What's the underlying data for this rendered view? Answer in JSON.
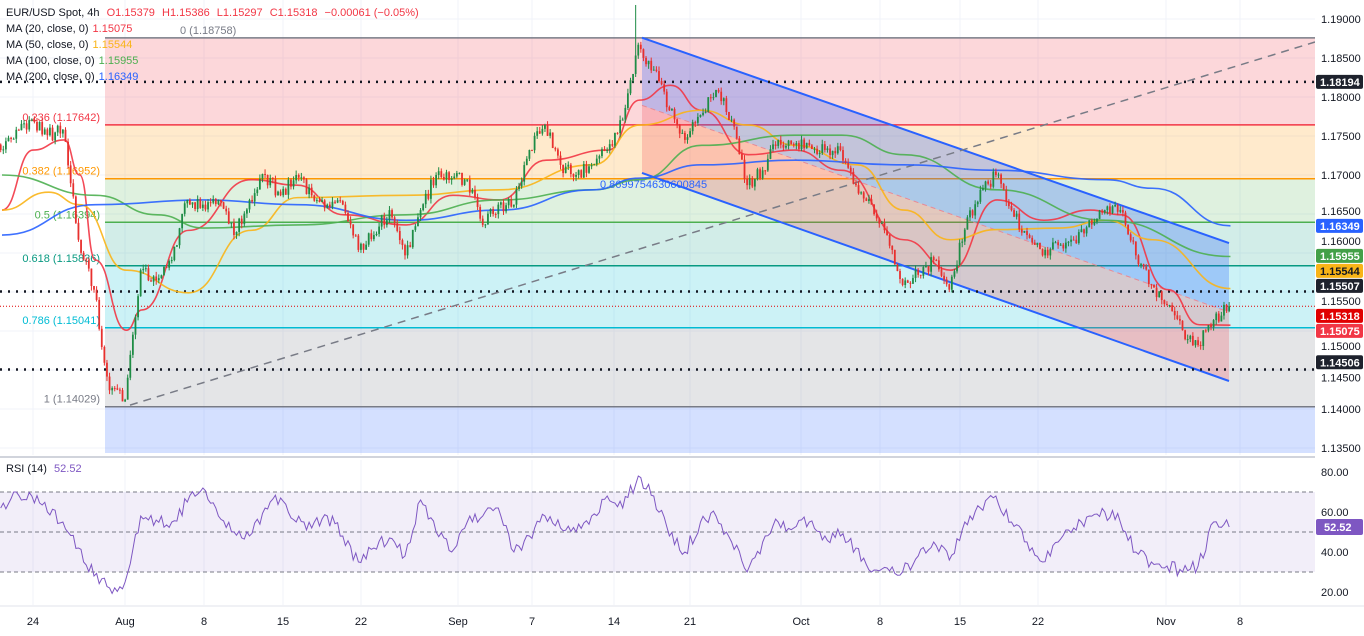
{
  "header": {
    "symbol": "EUR/USD Spot, 4h",
    "open": "O1.15379",
    "high": "H1.15386",
    "low": "L1.15297",
    "close": "C1.15318",
    "change": "−0.00061 (−0.05%)",
    "ohlc_color": "#f23645"
  },
  "indicators": [
    {
      "label": "MA (20, close, 0)",
      "value": "1.15075",
      "color": "#f23645"
    },
    {
      "label": "MA (50, close, 0)",
      "value": "1.15544",
      "color": "#f9b417"
    },
    {
      "label": "MA (100, close, 0)",
      "value": "1.15955",
      "color": "#4caf50"
    },
    {
      "label": "MA (200, close, 0)",
      "value": "1.16349",
      "color": "#2962ff"
    }
  ],
  "rsi_legend": {
    "label": "RSI (14)",
    "value": "52.52",
    "color": "#7e57c2"
  },
  "chart_data": [
    {
      "type": "candlestick",
      "timeframe": "4h",
      "price_axis": {
        "ylim": [
          1.135,
          1.19
        ],
        "ticks": [
          "1.19000",
          "1.18500",
          "1.18000",
          "1.17500",
          "1.17000",
          "1.16500",
          "1.16000",
          "1.15500",
          "1.15000",
          "1.14500",
          "1.14000",
          "1.13500"
        ]
      },
      "x_ticks": [
        "24",
        "Aug",
        "8",
        "15",
        "22",
        "Sep",
        "7",
        "14",
        "21",
        "Oct",
        "8",
        "15",
        "22",
        "Nov",
        "8"
      ],
      "colors": {
        "up": "#1e8c45",
        "down": "#e8302e"
      },
      "closes": [
        1.1732,
        1.1758,
        1.1771,
        1.1751,
        1.1758,
        1.1617,
        1.1553,
        1.1424,
        1.1412,
        1.1578,
        1.1565,
        1.1591,
        1.1668,
        1.1662,
        1.1668,
        1.1623,
        1.1668,
        1.17,
        1.1674,
        1.17,
        1.1674,
        1.1662,
        1.1662,
        1.1604,
        1.1623,
        1.1655,
        1.1597,
        1.1655,
        1.17,
        1.1696,
        1.1694,
        1.1636,
        1.1662,
        1.1662,
        1.1732,
        1.1764,
        1.1713,
        1.17,
        1.1713,
        1.1732,
        1.1771,
        1.1867,
        1.1835,
        1.1783,
        1.1745,
        1.1777,
        1.1809,
        1.1771,
        1.1687,
        1.1706,
        1.1745,
        1.1738,
        1.1738,
        1.1732,
        1.1732,
        1.1687,
        1.1662,
        1.1623,
        1.1559,
        1.1572,
        1.1591,
        1.1553,
        1.163,
        1.1681,
        1.17,
        1.1655,
        1.1623,
        1.1597,
        1.161,
        1.1617,
        1.1642,
        1.1655,
        1.1655,
        1.1597,
        1.1559,
        1.1533,
        1.1501,
        1.1482,
        1.1514,
        1.15318
      ],
      "notable_wick_high": 1.1918,
      "moving_averages": [
        {
          "name": "MA 20",
          "color": "#f23645",
          "values": [
            1.1655,
            null,
            1.1732,
            null,
            1.1745,
            1.17,
            1.1591,
            null,
            1.1501,
            1.1527,
            null,
            null,
            1.1629,
            null,
            null,
            null,
            1.1694,
            null,
            null,
            1.1687,
            null,
            null,
            1.1649,
            null,
            null,
            null,
            1.1636,
            null,
            null,
            1.1674,
            null,
            null,
            1.1668,
            null,
            null,
            1.1719,
            null,
            null,
            null,
            1.1732,
            null,
            1.1796,
            null,
            1.1815,
            null,
            1.1783,
            null,
            null,
            1.1726,
            null,
            null,
            1.1732,
            null,
            null,
            1.1706,
            null,
            null,
            null,
            1.1617,
            null,
            null,
            1.1578,
            null,
            null,
            1.1668,
            null,
            null,
            1.1642,
            null,
            null,
            1.1655,
            null,
            1.1649,
            null,
            null,
            1.1553,
            null,
            1.1508,
            null,
            1.15075
          ]
        },
        {
          "name": "MA 50",
          "color": "#f9b417",
          "values": [
            1.1655,
            null,
            null,
            1.1678,
            null,
            1.1662,
            null,
            null,
            1.1578,
            null,
            null,
            null,
            1.1549,
            null,
            null,
            null,
            1.1629,
            null,
            null,
            1.1671,
            null,
            null,
            null,
            null,
            null,
            null,
            1.1674,
            null,
            null,
            null,
            null,
            null,
            1.1681,
            null,
            null,
            null,
            null,
            null,
            1.1713,
            null,
            null,
            1.1764,
            null,
            null,
            null,
            1.1783,
            null,
            null,
            1.1764,
            null,
            null,
            1.1738,
            null,
            null,
            null,
            1.1713,
            null,
            null,
            1.1655,
            null,
            null,
            1.1617,
            null,
            null,
            1.163,
            null,
            null,
            null,
            1.1632,
            null,
            null,
            1.1642,
            null,
            null,
            1.1617,
            null,
            null,
            null,
            null,
            1.15544
          ]
        },
        {
          "name": "MA 100",
          "color": "#4caf50",
          "values": [
            1.17,
            null,
            null,
            null,
            null,
            null,
            1.1674,
            null,
            null,
            null,
            1.1649,
            null,
            null,
            1.1632,
            null,
            null,
            null,
            null,
            null,
            1.1636,
            null,
            null,
            null,
            null,
            null,
            null,
            1.1649,
            null,
            null,
            null,
            null,
            null,
            1.1668,
            null,
            null,
            null,
            null,
            null,
            1.1681,
            null,
            null,
            1.1694,
            null,
            null,
            null,
            1.1738,
            null,
            null,
            null,
            null,
            null,
            1.1751,
            null,
            null,
            1.1751,
            null,
            null,
            null,
            1.1726,
            null,
            null,
            null,
            null,
            null,
            1.1681,
            null,
            null,
            null,
            null,
            null,
            null,
            1.1642,
            null,
            null,
            null,
            null,
            null,
            null,
            null,
            1.15955
          ]
        },
        {
          "name": "MA 200",
          "color": "#2962ff",
          "values": [
            1.1623,
            null,
            null,
            null,
            null,
            null,
            1.1662,
            null,
            null,
            null,
            null,
            null,
            null,
            1.1668,
            null,
            null,
            null,
            null,
            null,
            1.1662,
            null,
            null,
            null,
            null,
            null,
            null,
            1.1642,
            null,
            null,
            null,
            null,
            null,
            1.1655,
            null,
            null,
            null,
            null,
            null,
            1.1681,
            null,
            null,
            1.1696,
            null,
            null,
            null,
            1.1713,
            null,
            null,
            null,
            null,
            null,
            1.1719,
            null,
            null,
            null,
            null,
            null,
            null,
            1.1713,
            null,
            null,
            null,
            null,
            null,
            1.1706,
            null,
            null,
            null,
            null,
            null,
            null,
            1.1694,
            null,
            null,
            1.1683,
            null,
            null,
            null,
            null,
            1.16349
          ]
        }
      ],
      "fibonacci": {
        "levels": [
          {
            "ratio": 0,
            "price": 1.18758,
            "label": "0 (1.18758)",
            "color": "#787b86",
            "fill": "rgba(242,54,69,0.2)"
          },
          {
            "ratio": 0.236,
            "price": 1.17642,
            "label": "0.236 (1.17642)",
            "color": "#f23645",
            "fill": "rgba(255,152,0,0.2)"
          },
          {
            "ratio": 0.382,
            "price": 1.16952,
            "label": "0.382 (1.16952)",
            "color": "#ff9800",
            "fill": "rgba(76,175,80,0.18)"
          },
          {
            "ratio": 0.5,
            "price": 1.16394,
            "label": "0.5 (1.16394)",
            "color": "#4caf50",
            "fill": "rgba(8,153,129,0.18)"
          },
          {
            "ratio": 0.618,
            "price": 1.15836,
            "label": "0.618 (1.15836)",
            "color": "#089981",
            "fill": "rgba(0,188,212,0.2)"
          },
          {
            "ratio": 0.786,
            "price": 1.15041,
            "label": "0.786 (1.15041)",
            "color": "#00bcd4",
            "fill": "rgba(120,123,134,0.2)"
          },
          {
            "ratio": 1,
            "price": 1.14029,
            "label": "1 (1.14029)",
            "color": "#787b86",
            "fill": "rgba(41,98,255,0.2)"
          }
        ]
      },
      "channel": {
        "upper": [
          1.1876,
          1.16128
        ],
        "middle": [
          1.17893,
          1.15243
        ],
        "lower": [
          1.17026,
          1.14359
        ],
        "upper_fill": "rgba(41,98,255,0.28)",
        "lower_fill": "rgba(242,54,69,0.22)",
        "line_color": "#2962ff",
        "label": "0.8699754630600845"
      },
      "trend_line": {
        "from": 1.1405,
        "color": "#787b86",
        "style": "dashed"
      },
      "horizontal_levels": [
        {
          "price": "1.18194",
          "style": "dotted",
          "color": "#131722"
        },
        {
          "price": "1.15507",
          "style": "dotted",
          "color": "#131722"
        },
        {
          "price": "1.14506",
          "style": "dotted",
          "color": "#131722"
        },
        {
          "price": "1.15318",
          "style": "dotted-current",
          "color": "#e00000"
        }
      ],
      "price_tags": [
        {
          "value": "1.18194",
          "bg": "#1e222d"
        },
        {
          "value": "1.16349",
          "bg": "#2962ff"
        },
        {
          "value": "1.15955",
          "bg": "#43a047"
        },
        {
          "value": "1.15544",
          "bg": "#f9b417",
          "fg": "#131722"
        },
        {
          "value": "1.15507",
          "bg": "#1e222d"
        },
        {
          "value": "1.15318",
          "bg": "#e00000"
        },
        {
          "value": "1.15075",
          "bg": "#f23645"
        },
        {
          "value": "1.14506",
          "bg": "#1e222d"
        }
      ]
    },
    {
      "type": "line",
      "name": "RSI (14)",
      "ylim": [
        10,
        85
      ],
      "ticks": [
        "80.00",
        "60.00",
        "40.00",
        "20.00"
      ],
      "bands": [
        70,
        50,
        30
      ],
      "color": "#7e57c2",
      "last_value": "52.52",
      "values": [
        62,
        70,
        68,
        60,
        55,
        42,
        28,
        22,
        25,
        58,
        56,
        55,
        65,
        72,
        58,
        50,
        48,
        62,
        67,
        55,
        52,
        58,
        48,
        35,
        42,
        47,
        38,
        66,
        50,
        40,
        55,
        58,
        62,
        40,
        48,
        58,
        52,
        50,
        58,
        68,
        62,
        78,
        68,
        48,
        40,
        55,
        58,
        45,
        30,
        45,
        55,
        52,
        55,
        48,
        48,
        42,
        30,
        32,
        30,
        38,
        45,
        36,
        55,
        62,
        68,
        55,
        45,
        35,
        45,
        52,
        58,
        60,
        55,
        40,
        35,
        33,
        30,
        33,
        55,
        52.52
      ]
    }
  ]
}
